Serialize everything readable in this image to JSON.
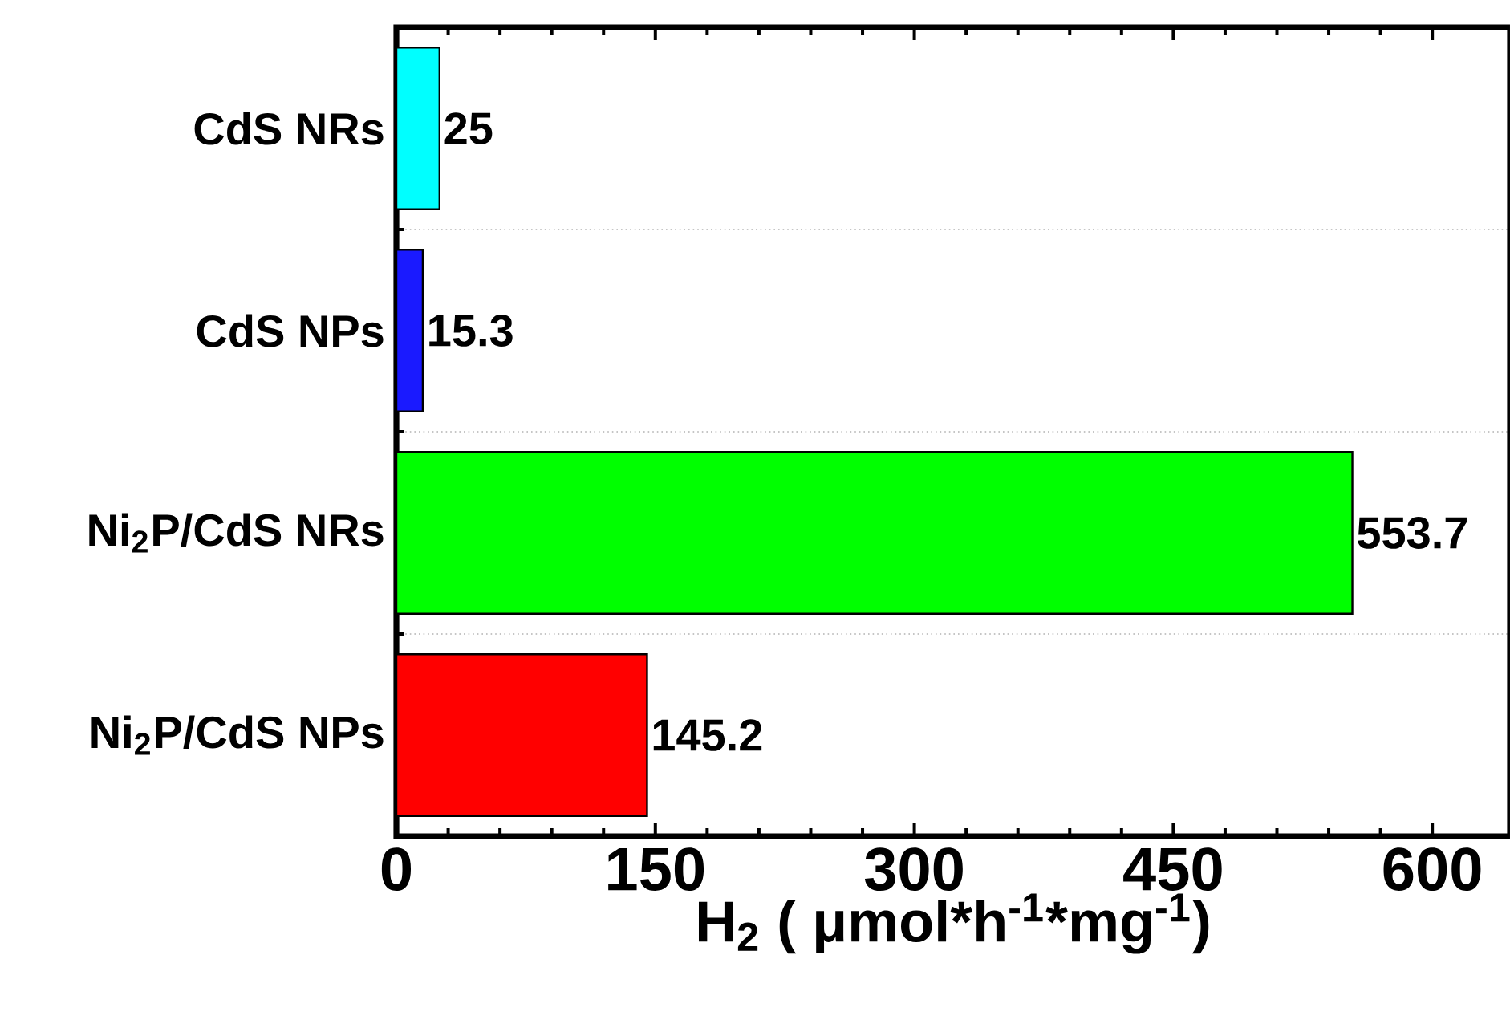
{
  "chart_data": {
    "type": "bar",
    "orientation": "horizontal",
    "categories": [
      "CdS NRs",
      "CdS NPs",
      "Ni$_{2}$P/CdS NRs",
      "Ni$_{2}$P/CdS NPs"
    ],
    "values": [
      25,
      15.3,
      553.7,
      145.2
    ],
    "colors": [
      "#00ffff",
      "#1a1aff",
      "#00ff00",
      "#ff0000"
    ],
    "xlim": [
      0,
      645
    ],
    "xticks": [
      0,
      150,
      300,
      450,
      600
    ],
    "xlabel": "H$_{2}$ ( μmol*h$^{-1}$*mg$^{-1}$)",
    "data_labels": true,
    "grid": "y"
  }
}
